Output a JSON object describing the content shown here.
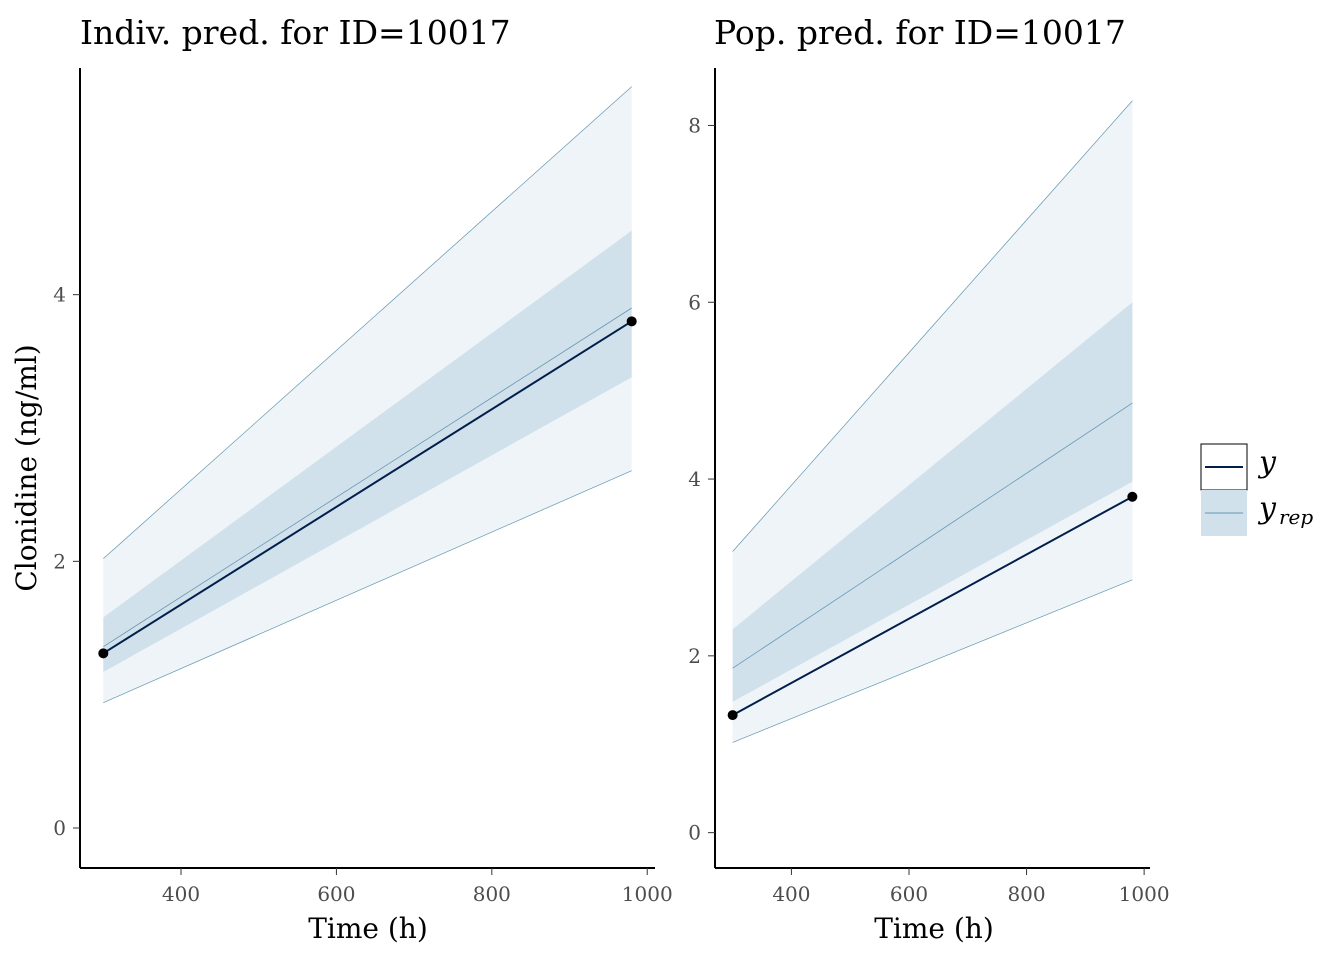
{
  "chart_data": [
    {
      "type": "line",
      "title": "Indiv. pred. for ID=10017",
      "xlabel": "Time (h)",
      "ylabel": "Clonidine (ng/ml)",
      "xlim": [
        270,
        1010
      ],
      "ylim": [
        -0.3,
        5.7
      ],
      "xticks": [
        400,
        600,
        800,
        1000
      ],
      "yticks": [
        0,
        2,
        4
      ],
      "x": [
        300,
        980
      ],
      "y": [
        1.31,
        3.8
      ],
      "yrep_median": [
        1.36,
        3.9
      ],
      "ribbon_inner": {
        "lower": [
          1.17,
          3.38
        ],
        "upper": [
          1.58,
          4.48
        ]
      },
      "ribbon_outer": {
        "lower": [
          0.94,
          2.68
        ],
        "upper": [
          2.02,
          5.56
        ]
      }
    },
    {
      "type": "line",
      "title": "Pop. pred. for ID=10017",
      "xlabel": "Time (h)",
      "ylabel": "",
      "xlim": [
        270,
        1010
      ],
      "ylim": [
        -0.4,
        8.65
      ],
      "xticks": [
        400,
        600,
        800,
        1000
      ],
      "yticks": [
        0,
        2,
        4,
        6,
        8
      ],
      "x": [
        300,
        980
      ],
      "y": [
        1.33,
        3.8
      ],
      "yrep_median": [
        1.86,
        4.86
      ],
      "ribbon_inner": {
        "lower": [
          1.48,
          3.97
        ],
        "upper": [
          2.3,
          6.0
        ]
      },
      "ribbon_outer": {
        "lower": [
          1.02,
          2.86
        ],
        "upper": [
          3.18,
          8.28
        ]
      }
    }
  ],
  "legend": {
    "placement": "right",
    "y_label": "y",
    "yrep_label": "y",
    "yrep_sub": "rep"
  },
  "colors": {
    "y_line": "#011f4b",
    "yrep_line": "#6497b1",
    "ribbon_outer": "#eef4f8",
    "ribbon_inner": "#d1e1ec",
    "axis": "#000000",
    "point": "#000000"
  }
}
